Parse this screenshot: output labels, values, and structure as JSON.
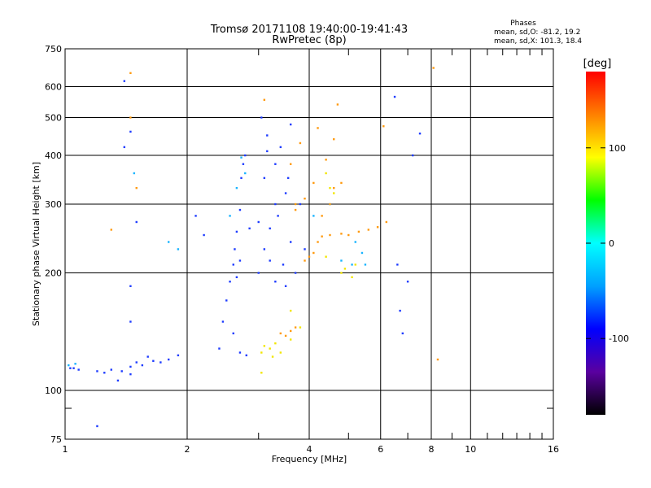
{
  "chart_data": {
    "type": "scatter",
    "title": "Tromsø 20171108 19:40:00-19:41:43",
    "subtitle": "RwPretec (8p)",
    "xlabel": "Frequency [MHz]",
    "ylabel": "Stationary phase Virtual Height [km]",
    "x_scale": "log",
    "y_scale": "log",
    "xlim": [
      1,
      16
    ],
    "ylim": [
      75,
      750
    ],
    "x_ticks": [
      1,
      2,
      4,
      6,
      8,
      10,
      16
    ],
    "y_ticks": [
      75,
      100,
      200,
      300,
      400,
      500,
      600,
      750
    ],
    "x_minor_ticks": [
      3,
      5,
      7,
      9,
      11,
      12,
      13,
      14,
      15
    ],
    "y_minor_ticks": [
      90
    ],
    "grid": true,
    "colorbar": {
      "label": "[deg]",
      "range": [
        -180,
        180
      ],
      "ticks": [
        100,
        0,
        -100
      ],
      "colors": [
        "#000000",
        "#5a00a0",
        "#0000ff",
        "#00a0ff",
        "#00ffff",
        "#00ff00",
        "#ffff00",
        "#ff8000",
        "#ff0000"
      ]
    },
    "stats_header": "Phases",
    "stats": [
      "mean, sd,O: -81.2, 19.2",
      "mean, sd,X: 101.3, 18.4"
    ],
    "series": [
      {
        "color_hint": "blue (approx -90 deg)",
        "points": [
          [
            1.03,
            114
          ],
          [
            1.05,
            114
          ],
          [
            1.08,
            113
          ],
          [
            1.2,
            112
          ],
          [
            1.25,
            111
          ],
          [
            1.3,
            113
          ],
          [
            1.38,
            112
          ],
          [
            1.45,
            115
          ],
          [
            1.5,
            118
          ],
          [
            1.55,
            116
          ],
          [
            1.6,
            122
          ],
          [
            1.65,
            119
          ],
          [
            1.72,
            118
          ],
          [
            1.8,
            120
          ],
          [
            1.9,
            123
          ],
          [
            1.35,
            106
          ],
          [
            1.2,
            81
          ],
          [
            1.45,
            110
          ],
          [
            2.4,
            128
          ],
          [
            2.45,
            150
          ],
          [
            2.5,
            170
          ],
          [
            2.55,
            190
          ],
          [
            2.6,
            210
          ],
          [
            2.62,
            230
          ],
          [
            2.65,
            255
          ],
          [
            2.7,
            290
          ],
          [
            2.72,
            350
          ],
          [
            2.75,
            380
          ],
          [
            2.78,
            400
          ],
          [
            2.6,
            140
          ],
          [
            2.7,
            125
          ],
          [
            2.8,
            123
          ],
          [
            2.85,
            260
          ],
          [
            2.7,
            215
          ],
          [
            2.65,
            195
          ],
          [
            3.0,
            200
          ],
          [
            3.1,
            230
          ],
          [
            3.2,
            260
          ],
          [
            3.3,
            300
          ],
          [
            3.1,
            350
          ],
          [
            3.3,
            380
          ],
          [
            3.5,
            320
          ],
          [
            3.6,
            240
          ],
          [
            3.2,
            215
          ],
          [
            3.45,
            210
          ],
          [
            3.7,
            200
          ],
          [
            3.3,
            190
          ],
          [
            3.05,
            500
          ],
          [
            3.15,
            450
          ],
          [
            3.4,
            420
          ],
          [
            3.6,
            480
          ],
          [
            3.0,
            270
          ],
          [
            3.35,
            280
          ],
          [
            3.8,
            300
          ],
          [
            3.9,
            230
          ],
          [
            3.5,
            185
          ],
          [
            3.15,
            410
          ],
          [
            3.55,
            350
          ],
          [
            6.5,
            565
          ],
          [
            7.0,
            190
          ],
          [
            6.6,
            210
          ],
          [
            6.7,
            160
          ],
          [
            6.8,
            140
          ],
          [
            7.2,
            400
          ],
          [
            7.5,
            455
          ],
          [
            1.4,
            620
          ],
          [
            1.45,
            460
          ],
          [
            1.5,
            270
          ],
          [
            1.45,
            185
          ],
          [
            1.45,
            150
          ],
          [
            1.4,
            420
          ],
          [
            2.1,
            280
          ],
          [
            2.2,
            250
          ]
        ]
      },
      {
        "color_hint": "light blue / cyan (approx -40 deg)",
        "points": [
          [
            1.02,
            116
          ],
          [
            1.06,
            117
          ],
          [
            2.65,
            330
          ],
          [
            2.72,
            395
          ],
          [
            2.78,
            360
          ],
          [
            2.55,
            280
          ],
          [
            4.8,
            215
          ],
          [
            5.2,
            240
          ],
          [
            5.4,
            225
          ],
          [
            5.5,
            210
          ],
          [
            1.9,
            230
          ],
          [
            1.8,
            240
          ],
          [
            4.5,
            300
          ],
          [
            4.1,
            280
          ],
          [
            5.1,
            210
          ],
          [
            1.48,
            360
          ]
        ]
      },
      {
        "color_hint": "yellow (approx 100 deg)",
        "points": [
          [
            3.05,
            125
          ],
          [
            3.1,
            130
          ],
          [
            3.2,
            128
          ],
          [
            3.25,
            122
          ],
          [
            3.4,
            125
          ],
          [
            3.3,
            132
          ],
          [
            3.6,
            135
          ],
          [
            3.8,
            145
          ],
          [
            3.6,
            160
          ],
          [
            4.8,
            200
          ],
          [
            4.9,
            205
          ],
          [
            5.1,
            195
          ],
          [
            5.2,
            210
          ],
          [
            4.4,
            360
          ],
          [
            4.5,
            330
          ],
          [
            4.6,
            320
          ],
          [
            4.4,
            220
          ],
          [
            3.05,
            111
          ]
        ]
      },
      {
        "color_hint": "orange (approx 140 deg)",
        "points": [
          [
            3.4,
            140
          ],
          [
            3.6,
            142
          ],
          [
            3.7,
            145
          ],
          [
            3.5,
            138
          ],
          [
            3.9,
            215
          ],
          [
            4.0,
            220
          ],
          [
            4.1,
            225
          ],
          [
            4.2,
            240
          ],
          [
            4.3,
            248
          ],
          [
            4.5,
            250
          ],
          [
            4.8,
            252
          ],
          [
            5.0,
            250
          ],
          [
            5.3,
            255
          ],
          [
            5.6,
            258
          ],
          [
            5.9,
            262
          ],
          [
            6.2,
            270
          ],
          [
            3.7,
            290
          ],
          [
            3.9,
            310
          ],
          [
            4.1,
            340
          ],
          [
            4.3,
            280
          ],
          [
            4.5,
            300
          ],
          [
            4.6,
            330
          ],
          [
            4.8,
            340
          ],
          [
            4.4,
            390
          ],
          [
            4.6,
            440
          ],
          [
            4.2,
            470
          ],
          [
            4.7,
            540
          ],
          [
            3.6,
            380
          ],
          [
            3.8,
            430
          ],
          [
            3.7,
            300
          ],
          [
            6.1,
            475
          ],
          [
            8.1,
            670
          ],
          [
            8.3,
            120
          ],
          [
            1.45,
            650
          ],
          [
            1.45,
            500
          ],
          [
            1.5,
            330
          ],
          [
            1.3,
            258
          ],
          [
            3.1,
            555
          ]
        ]
      }
    ]
  }
}
